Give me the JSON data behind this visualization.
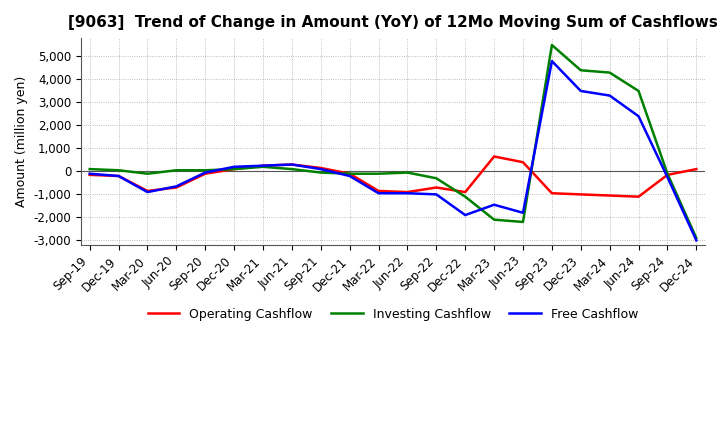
{
  "title": "[9063]  Trend of Change in Amount (YoY) of 12Mo Moving Sum of Cashflows",
  "ylabel": "Amount (million yen)",
  "ylim": [
    -3200,
    5800
  ],
  "yticks": [
    -3000,
    -2000,
    -1000,
    0,
    1000,
    2000,
    3000,
    4000,
    5000
  ],
  "legend_labels": [
    "Operating Cashflow",
    "Investing Cashflow",
    "Free Cashflow"
  ],
  "legend_colors": [
    "#ff0000",
    "#008000",
    "#0000ff"
  ],
  "x_labels": [
    "Sep-19",
    "Dec-19",
    "Mar-20",
    "Jun-20",
    "Sep-20",
    "Dec-20",
    "Mar-21",
    "Jun-21",
    "Sep-21",
    "Dec-21",
    "Mar-22",
    "Jun-22",
    "Sep-22",
    "Dec-22",
    "Mar-23",
    "Jun-23",
    "Sep-23",
    "Dec-23",
    "Mar-24",
    "Jun-24",
    "Sep-24",
    "Dec-24"
  ],
  "operating": [
    -150,
    -200,
    -850,
    -700,
    -100,
    100,
    250,
    300,
    150,
    -100,
    -850,
    -900,
    -700,
    -900,
    650,
    400,
    -950,
    -1000,
    -1050,
    -1100,
    -150,
    100
  ],
  "investing": [
    100,
    50,
    -100,
    50,
    50,
    100,
    200,
    100,
    -50,
    -100,
    -100,
    -50,
    -300,
    -1100,
    -2100,
    -2200,
    5500,
    4400,
    4300,
    3500,
    -100,
    -2900
  ],
  "free": [
    -100,
    -200,
    -900,
    -650,
    -50,
    200,
    250,
    300,
    100,
    -200,
    -950,
    -950,
    -1000,
    -1900,
    -1450,
    -1800,
    4800,
    3500,
    3300,
    2400,
    -250,
    -3000
  ],
  "background_color": "#ffffff",
  "grid_color": "#aaaaaa",
  "title_fontsize": 11,
  "label_fontsize": 9,
  "tick_fontsize": 8.5,
  "linewidth": 1.8
}
